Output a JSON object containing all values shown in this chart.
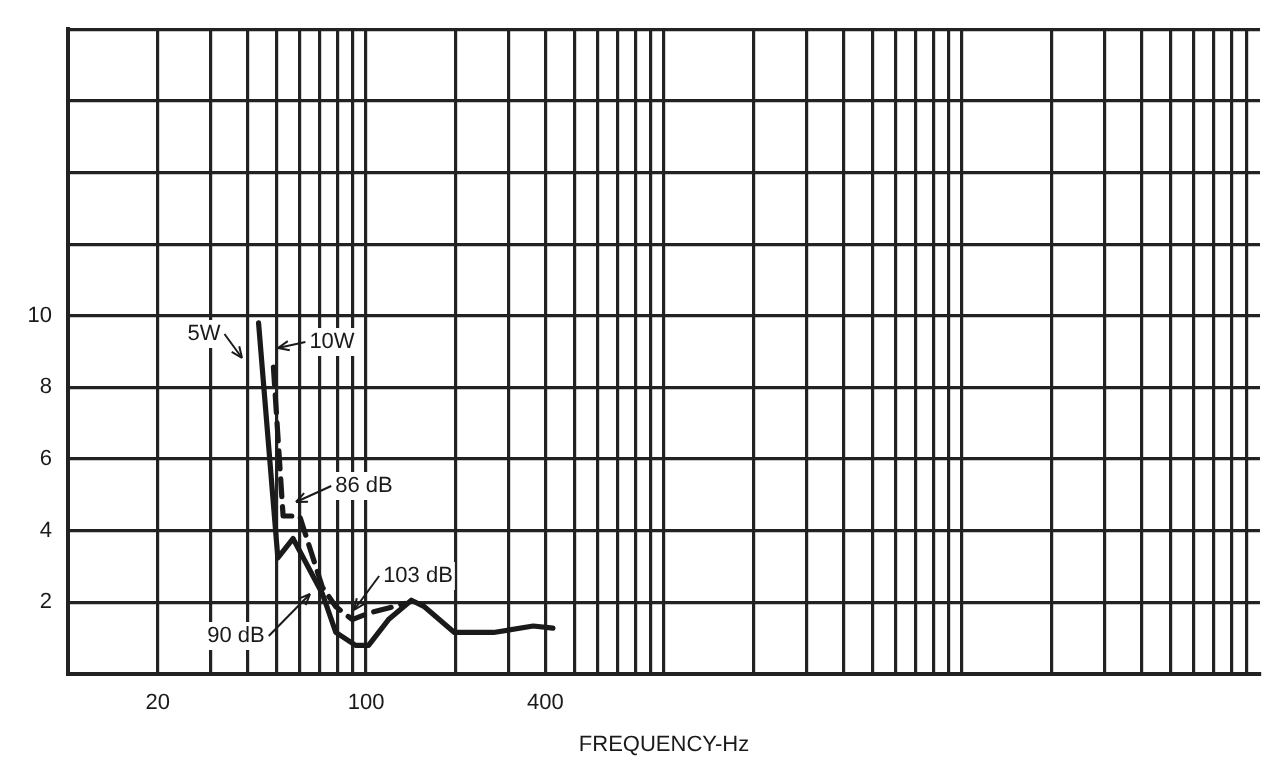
{
  "chart_data": {
    "type": "line",
    "xlabel": "FREQUENCY-Hz",
    "log": "x",
    "grid": true,
    "legend": false,
    "marker": "none",
    "xlim": [
      10,
      100000
    ],
    "xticks": [
      {
        "value": 20,
        "label": "20"
      },
      {
        "value": 30,
        "label": null
      },
      {
        "value": 40,
        "label": null
      },
      {
        "value": 50,
        "label": null
      },
      {
        "value": 60,
        "label": null
      },
      {
        "value": 70,
        "label": null
      },
      {
        "value": 80,
        "label": null
      },
      {
        "value": 90,
        "label": null
      },
      {
        "value": 100,
        "label": "100"
      },
      {
        "value": 200,
        "label": null
      },
      {
        "value": 300,
        "label": null
      },
      {
        "value": 400,
        "label": "400"
      },
      {
        "value": 500,
        "label": null
      },
      {
        "value": 600,
        "label": null
      },
      {
        "value": 700,
        "label": null
      },
      {
        "value": 800,
        "label": null
      },
      {
        "value": 900,
        "label": null
      },
      {
        "value": 1000,
        "label": null
      },
      {
        "value": 2000,
        "label": null
      },
      {
        "value": 3000,
        "label": null
      },
      {
        "value": 4000,
        "label": null
      },
      {
        "value": 5000,
        "label": null
      },
      {
        "value": 6000,
        "label": null
      },
      {
        "value": 7000,
        "label": null
      },
      {
        "value": 8000,
        "label": null
      },
      {
        "value": 9000,
        "label": null
      },
      {
        "value": 10000,
        "label": null
      },
      {
        "value": 20000,
        "label": null
      },
      {
        "value": 30000,
        "label": null
      },
      {
        "value": 40000,
        "label": null
      },
      {
        "value": 50000,
        "label": null
      },
      {
        "value": 60000,
        "label": null
      },
      {
        "value": 70000,
        "label": null
      },
      {
        "value": 80000,
        "label": null
      },
      {
        "value": 90000,
        "label": null
      }
    ],
    "ylim": [
      0,
      18
    ],
    "yticks": [
      {
        "value": 0,
        "label": null
      },
      2,
      4,
      6,
      8,
      10,
      {
        "value": 12,
        "label": null
      },
      {
        "value": 14,
        "label": null
      },
      {
        "value": 16,
        "label": null
      },
      {
        "value": 18,
        "label": null
      }
    ],
    "series": [
      {
        "color": "#1a1a1a",
        "line_style": "solid",
        "x": [
          43.6,
          50.6,
          56.9,
          71.4,
          79.2,
          92.3,
          102,
          119,
          142,
          157,
          198,
          268,
          364,
          424
        ],
        "values": [
          9.8,
          3.24,
          3.78,
          2.24,
          1.16,
          0.8,
          0.8,
          1.52,
          2.06,
          1.88,
          1.16,
          1.16,
          1.34,
          1.28
        ]
      },
      {
        "color": "#1a1a1a",
        "line_style": "dashed",
        "x": [
          48.9,
          52.7,
          59.9,
          71.4,
          79.2,
          89.9,
          102,
          119,
          135
        ],
        "values": [
          8.57,
          4.41,
          4.41,
          2.42,
          1.88,
          1.52,
          1.7,
          1.84,
          1.97
        ]
      }
    ],
    "annotations": [
      "5W",
      "10W",
      "86 dB",
      "90 dB",
      "103 dB"
    ]
  }
}
